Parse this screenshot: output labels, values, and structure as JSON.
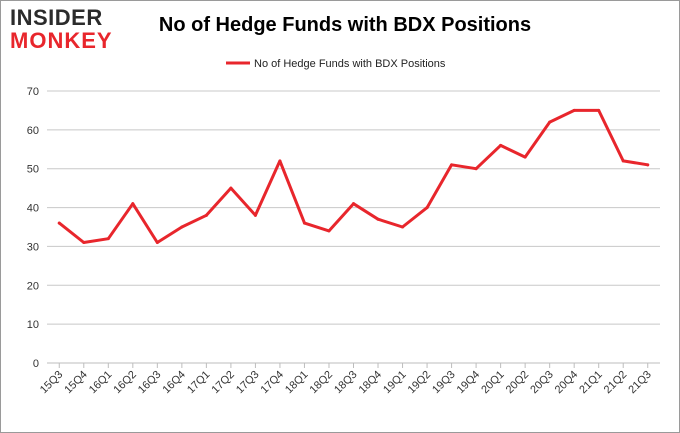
{
  "logo": {
    "line1": "INSIDER",
    "line2": "MONKEY"
  },
  "colors": {
    "series": "#e8262c",
    "grid": "#c8c8c8",
    "axis_text": "#333333"
  },
  "chart_data": {
    "type": "line",
    "title": "No of Hedge Funds with BDX Positions",
    "xlabel": "",
    "ylabel": "",
    "ylim": [
      0,
      70
    ],
    "yticks": [
      0,
      10,
      20,
      30,
      40,
      50,
      60,
      70
    ],
    "grid": true,
    "legend_position": "top-center",
    "categories": [
      "15Q3",
      "15Q4",
      "16Q1",
      "16Q2",
      "16Q3",
      "16Q4",
      "17Q1",
      "17Q2",
      "17Q3",
      "17Q4",
      "18Q1",
      "18Q2",
      "18Q3",
      "18Q4",
      "19Q1",
      "19Q2",
      "19Q3",
      "19Q4",
      "20Q1",
      "20Q2",
      "20Q3",
      "20Q4",
      "21Q1",
      "21Q2",
      "21Q3"
    ],
    "series": [
      {
        "name": "No of Hedge Funds with BDX Positions",
        "values": [
          36,
          31,
          32,
          41,
          31,
          35,
          38,
          45,
          38,
          52,
          36,
          34,
          41,
          37,
          35,
          40,
          51,
          50,
          56,
          53,
          62,
          65,
          65,
          52,
          51
        ]
      }
    ]
  }
}
